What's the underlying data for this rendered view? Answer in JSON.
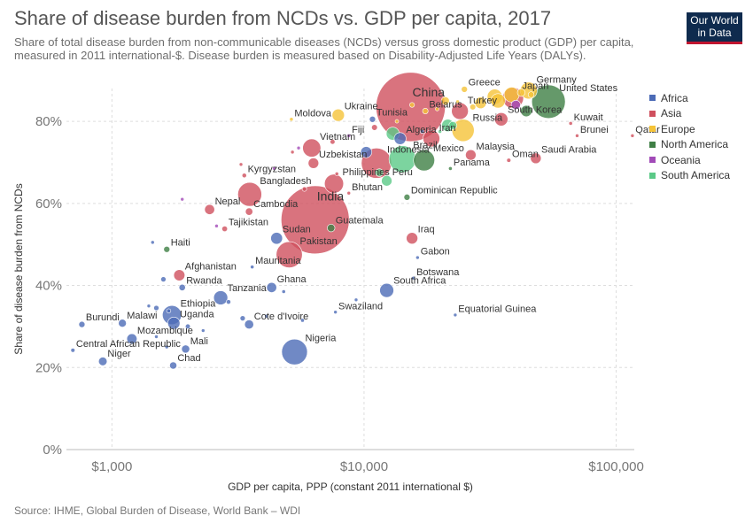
{
  "title": "Share of disease burden from NCDs vs. GDP per capita, 2017",
  "subtitle": "Share of total disease burden from non-communicable diseases (NCDs) versus gross domestic product (GDP) per capita, measured in 2011 international-$. Disease burden is measured based on Disability-Adjusted Life Years (DALYs).",
  "logo": {
    "line1": "Our World",
    "line2": "in Data"
  },
  "footer": "Source: IHME, Global Burden of Disease, World Bank – WDI",
  "colors": {
    "Africa": "#4c6bb6",
    "Asia": "#cf505e",
    "Europe": "#f5c338",
    "North America": "#3f7f45",
    "Oceania": "#a24bb8",
    "South America": "#5bc987"
  },
  "chart_data": {
    "type": "scatter",
    "title": "Share of disease burden from NCDs vs. GDP per capita, 2017",
    "xlabel": "GDP per capita, PPP (constant 2011 international $)",
    "ylabel": "Share of disease burden from NCDs",
    "xscale": "log",
    "xlim": [
      660,
      118000
    ],
    "ylim": [
      0,
      88
    ],
    "xticks": [
      {
        "v": 1000,
        "label": "$1,000"
      },
      {
        "v": 10000,
        "label": "$10,000"
      },
      {
        "v": 100000,
        "label": "$100,000"
      }
    ],
    "yticks": [
      {
        "v": 0,
        "label": "0%"
      },
      {
        "v": 20,
        "label": "20%"
      },
      {
        "v": 40,
        "label": "40%"
      },
      {
        "v": 60,
        "label": "60%"
      },
      {
        "v": 80,
        "label": "80%"
      }
    ],
    "legend": [
      "Africa",
      "Asia",
      "Europe",
      "North America",
      "Oceania",
      "South America"
    ],
    "points": [
      {
        "name": "China",
        "x": 15300,
        "y": 83.5,
        "region": "Asia",
        "size": 1386
      },
      {
        "name": "India",
        "x": 6400,
        "y": 56,
        "region": "Asia",
        "size": 1339
      },
      {
        "name": "Indonesia",
        "x": 11200,
        "y": 69.8,
        "region": "Asia",
        "size": 264
      },
      {
        "name": "Pakistan",
        "x": 5050,
        "y": 47.5,
        "region": "Asia",
        "size": 197
      },
      {
        "name": "Bangladesh",
        "x": 3520,
        "y": 62.2,
        "region": "Asia",
        "size": 165
      },
      {
        "name": "Nigeria",
        "x": 5300,
        "y": 23.8,
        "region": "Africa",
        "size": 191
      },
      {
        "name": "United States",
        "x": 53900,
        "y": 84.8,
        "region": "North America",
        "size": 325
      },
      {
        "name": "Brazil",
        "x": 14200,
        "y": 70.8,
        "region": "South America",
        "size": 209
      },
      {
        "name": "Mexico",
        "x": 17300,
        "y": 70.5,
        "region": "North America",
        "size": 129
      },
      {
        "name": "Russia",
        "x": 24700,
        "y": 77.8,
        "region": "Europe",
        "size": 144
      },
      {
        "name": "Japan",
        "x": 39000,
        "y": 85.7,
        "region": "Asia",
        "size": 127
      },
      {
        "name": "Germany",
        "x": 45000,
        "y": 87.5,
        "region": "Europe",
        "size": 82
      },
      {
        "name": "Ethiopia",
        "x": 1730,
        "y": 32.8,
        "region": "Africa",
        "size": 105
      },
      {
        "name": "Philippines",
        "x": 7600,
        "y": 64.8,
        "region": "Asia",
        "size": 105
      },
      {
        "name": "Vietnam",
        "x": 6200,
        "y": 73.5,
        "region": "Asia",
        "size": 95
      },
      {
        "name": "Iran",
        "x": 18500,
        "y": 75.8,
        "region": "Asia",
        "size": 81
      },
      {
        "name": "Turkey",
        "x": 24000,
        "y": 82.5,
        "region": "Asia",
        "size": 81
      },
      {
        "name": "Tanzania",
        "x": 2700,
        "y": 37,
        "region": "Africa",
        "size": 57
      },
      {
        "name": "Ghana",
        "x": 4300,
        "y": 39.5,
        "region": "Africa",
        "size": 29
      },
      {
        "name": "Sudan",
        "x": 4500,
        "y": 51.5,
        "region": "Africa",
        "size": 40
      },
      {
        "name": "Uganda",
        "x": 1760,
        "y": 30.8,
        "region": "Africa",
        "size": 43
      },
      {
        "name": "Afghanistan",
        "x": 1850,
        "y": 42.5,
        "region": "Asia",
        "size": 36
      },
      {
        "name": "South Korea",
        "x": 35000,
        "y": 80.5,
        "region": "Asia",
        "size": 51
      },
      {
        "name": "Malawi",
        "x": 1100,
        "y": 30.8,
        "region": "Africa",
        "size": 18
      },
      {
        "name": "Mozambique",
        "x": 1200,
        "y": 27,
        "region": "Africa",
        "size": 30
      },
      {
        "name": "Burundi",
        "x": 760,
        "y": 30.5,
        "region": "Africa",
        "size": 11
      },
      {
        "name": "Central African Republic",
        "x": 700,
        "y": 24.2,
        "region": "Africa",
        "size": 5
      },
      {
        "name": "Niger",
        "x": 920,
        "y": 21.5,
        "region": "Africa",
        "size": 21
      },
      {
        "name": "Chad",
        "x": 1750,
        "y": 20.5,
        "region": "Africa",
        "size": 15
      },
      {
        "name": "Mali",
        "x": 1960,
        "y": 24.5,
        "region": "Africa",
        "size": 19
      },
      {
        "name": "Rwanda",
        "x": 1900,
        "y": 39.5,
        "region": "Africa",
        "size": 12
      },
      {
        "name": "Haiti",
        "x": 1650,
        "y": 48.8,
        "region": "North America",
        "size": 11
      },
      {
        "name": "Nepal",
        "x": 2440,
        "y": 58.5,
        "region": "Asia",
        "size": 29
      },
      {
        "name": "Cambodia",
        "x": 3500,
        "y": 58,
        "region": "Asia",
        "size": 16
      },
      {
        "name": "Tajikistan",
        "x": 2800,
        "y": 53.8,
        "region": "Asia",
        "size": 9
      },
      {
        "name": "Kyrgyzstan",
        "x": 3350,
        "y": 66.8,
        "region": "Asia",
        "size": 6
      },
      {
        "name": "Uzbekistan",
        "x": 6300,
        "y": 69.8,
        "region": "Asia",
        "size": 32
      },
      {
        "name": "Moldova",
        "x": 5150,
        "y": 80.5,
        "region": "Europe",
        "size": 4
      },
      {
        "name": "Ukraine",
        "x": 7900,
        "y": 81.5,
        "region": "Europe",
        "size": 44
      },
      {
        "name": "Tunisia",
        "x": 10800,
        "y": 80.5,
        "region": "Africa",
        "size": 11
      },
      {
        "name": "Belarus",
        "x": 17500,
        "y": 82.5,
        "region": "Europe",
        "size": 9
      },
      {
        "name": "Algeria",
        "x": 13900,
        "y": 75.8,
        "region": "Africa",
        "size": 41
      },
      {
        "name": "Fiji",
        "x": 8700,
        "y": 76.5,
        "region": "Oceania",
        "size": 1
      },
      {
        "name": "Bhutan",
        "x": 8700,
        "y": 62.5,
        "region": "Asia",
        "size": 1
      },
      {
        "name": "Peru",
        "x": 12300,
        "y": 65.5,
        "region": "South America",
        "size": 32
      },
      {
        "name": "Dominican Republic",
        "x": 14800,
        "y": 61.5,
        "region": "North America",
        "size": 11
      },
      {
        "name": "Guatemala",
        "x": 7400,
        "y": 54,
        "region": "North America",
        "size": 17
      },
      {
        "name": "Mauritania",
        "x": 3600,
        "y": 44.5,
        "region": "Africa",
        "size": 4
      },
      {
        "name": "Cote d'Ivoire",
        "x": 3500,
        "y": 30.5,
        "region": "Africa",
        "size": 24
      },
      {
        "name": "Swaziland",
        "x": 7700,
        "y": 33.5,
        "region": "Africa",
        "size": 1
      },
      {
        "name": "South Africa",
        "x": 12300,
        "y": 38.8,
        "region": "Africa",
        "size": 57
      },
      {
        "name": "Botswana",
        "x": 15700,
        "y": 41.8,
        "region": "Africa",
        "size": 2
      },
      {
        "name": "Gabon",
        "x": 16300,
        "y": 46.8,
        "region": "Africa",
        "size": 2
      },
      {
        "name": "Iraq",
        "x": 15500,
        "y": 51.5,
        "region": "Asia",
        "size": 38
      },
      {
        "name": "Equatorial Guinea",
        "x": 23000,
        "y": 32.8,
        "region": "Africa",
        "size": 1
      },
      {
        "name": "Panama",
        "x": 22000,
        "y": 68.5,
        "region": "North America",
        "size": 4
      },
      {
        "name": "Malaysia",
        "x": 26500,
        "y": 71.8,
        "region": "Asia",
        "size": 32
      },
      {
        "name": "Greece",
        "x": 25000,
        "y": 87.8,
        "region": "Europe",
        "size": 11
      },
      {
        "name": "Oman",
        "x": 37500,
        "y": 70.5,
        "region": "Asia",
        "size": 5
      },
      {
        "name": "Saudi Arabia",
        "x": 48000,
        "y": 71,
        "region": "Asia",
        "size": 33
      },
      {
        "name": "Kuwait",
        "x": 66000,
        "y": 79.5,
        "region": "Asia",
        "size": 4
      },
      {
        "name": "Brunei",
        "x": 70000,
        "y": 76.5,
        "region": "Asia",
        "size": 1
      },
      {
        "name": "Qatar",
        "x": 116000,
        "y": 76.5,
        "region": "Asia",
        "size": 3
      },
      {
        "name": "",
        "x": 40000,
        "y": 84,
        "region": "Oceania",
        "size": 25
      },
      {
        "name": "",
        "x": 33000,
        "y": 86,
        "region": "Europe",
        "size": 66
      },
      {
        "name": "",
        "x": 38500,
        "y": 86.5,
        "region": "Europe",
        "size": 65
      },
      {
        "name": "",
        "x": 34000,
        "y": 85,
        "region": "Europe",
        "size": 60
      },
      {
        "name": "",
        "x": 42000,
        "y": 87,
        "region": "Europe",
        "size": 17
      },
      {
        "name": "",
        "x": 46000,
        "y": 86.5,
        "region": "Europe",
        "size": 10
      },
      {
        "name": "",
        "x": 29000,
        "y": 84.5,
        "region": "Europe",
        "size": 38
      },
      {
        "name": "",
        "x": 27000,
        "y": 83.5,
        "region": "Europe",
        "size": 10
      },
      {
        "name": "",
        "x": 21000,
        "y": 85,
        "region": "Europe",
        "size": 19
      },
      {
        "name": "",
        "x": 44000,
        "y": 82.5,
        "region": "North America",
        "size": 37
      },
      {
        "name": "",
        "x": 19500,
        "y": 83,
        "region": "Europe",
        "size": 4
      },
      {
        "name": "",
        "x": 23500,
        "y": 84.8,
        "region": "Europe",
        "size": 2
      },
      {
        "name": "",
        "x": 15500,
        "y": 84,
        "region": "Europe",
        "size": 7
      },
      {
        "name": "",
        "x": 13500,
        "y": 80,
        "region": "Europe",
        "size": 3
      },
      {
        "name": "",
        "x": 21500,
        "y": 79,
        "region": "South America",
        "size": 44
      },
      {
        "name": "",
        "x": 22500,
        "y": 79,
        "region": "South America",
        "size": 18
      },
      {
        "name": "",
        "x": 20000,
        "y": 77.5,
        "region": "South America",
        "size": 3
      },
      {
        "name": "",
        "x": 13000,
        "y": 77,
        "region": "South America",
        "size": 49
      },
      {
        "name": "",
        "x": 10200,
        "y": 72.5,
        "region": "Africa",
        "size": 36
      },
      {
        "name": "",
        "x": 11000,
        "y": 78.5,
        "region": "Asia",
        "size": 10
      },
      {
        "name": "",
        "x": 7800,
        "y": 67.2,
        "region": "Asia",
        "size": 4
      },
      {
        "name": "",
        "x": 11500,
        "y": 67.5,
        "region": "South America",
        "size": 17
      },
      {
        "name": "",
        "x": 4400,
        "y": 68.5,
        "region": "Oceania",
        "size": 1
      },
      {
        "name": "",
        "x": 1900,
        "y": 61,
        "region": "Oceania",
        "size": 1
      },
      {
        "name": "",
        "x": 2600,
        "y": 54.5,
        "region": "Oceania",
        "size": 1
      },
      {
        "name": "",
        "x": 5800,
        "y": 63.5,
        "region": "Asia",
        "size": 6
      },
      {
        "name": "",
        "x": 5500,
        "y": 73.5,
        "region": "Oceania",
        "size": 1
      },
      {
        "name": "",
        "x": 5200,
        "y": 72.5,
        "region": "Asia",
        "size": 3
      },
      {
        "name": "",
        "x": 7500,
        "y": 75,
        "region": "Asia",
        "size": 7
      },
      {
        "name": "",
        "x": 3250,
        "y": 69.5,
        "region": "Asia",
        "size": 1
      },
      {
        "name": "",
        "x": 1450,
        "y": 50.5,
        "region": "Africa",
        "size": 2
      },
      {
        "name": "",
        "x": 1500,
        "y": 34.5,
        "region": "Africa",
        "size": 8
      },
      {
        "name": "",
        "x": 1600,
        "y": 41.5,
        "region": "Africa",
        "size": 8
      },
      {
        "name": "",
        "x": 1680,
        "y": 33.8,
        "region": "Africa",
        "size": 5
      },
      {
        "name": "",
        "x": 2000,
        "y": 30,
        "region": "Africa",
        "size": 7
      },
      {
        "name": "",
        "x": 2900,
        "y": 36,
        "region": "Africa",
        "size": 6
      },
      {
        "name": "",
        "x": 3300,
        "y": 32,
        "region": "Africa",
        "size": 8
      },
      {
        "name": "",
        "x": 4800,
        "y": 38.5,
        "region": "Africa",
        "size": 4
      },
      {
        "name": "",
        "x": 5700,
        "y": 31.5,
        "region": "Africa",
        "size": 4
      },
      {
        "name": "",
        "x": 1400,
        "y": 35,
        "region": "Africa",
        "size": 2
      },
      {
        "name": "",
        "x": 1500,
        "y": 27.5,
        "region": "Africa",
        "size": 2
      },
      {
        "name": "",
        "x": 2300,
        "y": 29,
        "region": "Africa",
        "size": 2
      },
      {
        "name": "",
        "x": 1650,
        "y": 25,
        "region": "Africa",
        "size": 1
      },
      {
        "name": "",
        "x": 4100,
        "y": 32.5,
        "region": "Africa",
        "size": 2
      },
      {
        "name": "",
        "x": 9300,
        "y": 36.5,
        "region": "Africa",
        "size": 1
      },
      {
        "name": "",
        "x": 17000,
        "y": 77.5,
        "region": "Africa",
        "size": 4
      }
    ]
  }
}
